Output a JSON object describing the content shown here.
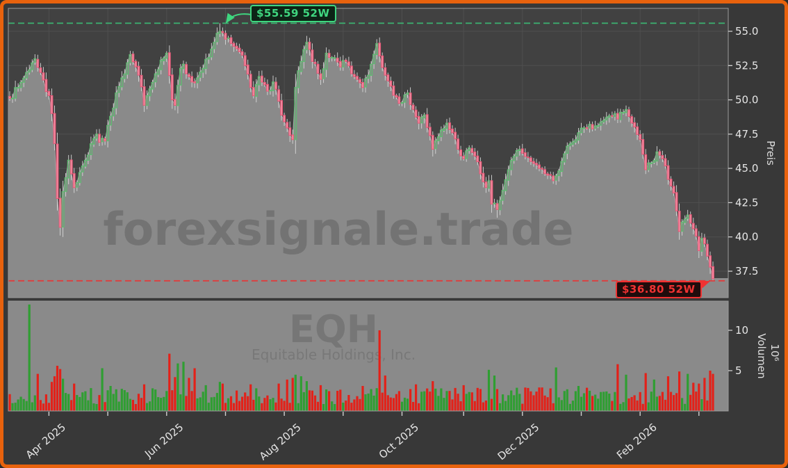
{
  "watermark": {
    "line1": "forexsignale.trade",
    "symbol": "EQH",
    "company": "Equitable Holdings, Inc."
  },
  "annotations": {
    "high": {
      "label": "$55.59 52W",
      "value": 55.59,
      "color": "#3fd67f",
      "bg": "#0d2416"
    },
    "low": {
      "label": "$36.80 52W",
      "value": 36.8,
      "color": "#f03232",
      "bg": "#200c0c"
    }
  },
  "axes": {
    "price": {
      "title": "Preis",
      "range": [
        35.6,
        56.7
      ],
      "ticks": [
        {
          "v": 55.0,
          "label": "55.0"
        },
        {
          "v": 52.5,
          "label": "52.5"
        },
        {
          "v": 50.0,
          "label": "50.0"
        },
        {
          "v": 47.5,
          "label": "47.5"
        },
        {
          "v": 45.0,
          "label": "45.0"
        },
        {
          "v": 42.5,
          "label": "42.5"
        },
        {
          "v": 40.0,
          "label": "40.0"
        },
        {
          "v": 37.5,
          "label": "37.5"
        }
      ]
    },
    "volume": {
      "title": "Volumen",
      "unit": "10⁶",
      "range": [
        0,
        13.7
      ],
      "ticks": [
        {
          "v": 10,
          "label": "10"
        },
        {
          "v": 5,
          "label": "5"
        }
      ]
    },
    "x": {
      "ticks": [
        {
          "i": 14,
          "label": "Apr 2025"
        },
        {
          "i": 35,
          "label": ""
        },
        {
          "i": 56,
          "label": "Jun 2025"
        },
        {
          "i": 77,
          "label": ""
        },
        {
          "i": 98,
          "label": "Aug 2025"
        },
        {
          "i": 119,
          "label": ""
        },
        {
          "i": 140,
          "label": "Oct 2025"
        },
        {
          "i": 162,
          "label": ""
        },
        {
          "i": 183,
          "label": "Dec 2025"
        },
        {
          "i": 204,
          "label": ""
        },
        {
          "i": 225,
          "label": "Feb 2026"
        },
        {
          "i": 246,
          "label": ""
        }
      ]
    }
  },
  "chart_data": {
    "type": "candlestick",
    "symbol": "EQH",
    "n": 252,
    "seed": 7,
    "high_52w": 55.59,
    "low_52w": 36.8,
    "close_anchors": [
      [
        0,
        50.1
      ],
      [
        3,
        50.9
      ],
      [
        6,
        52.0
      ],
      [
        9,
        53.0
      ],
      [
        11,
        52.0
      ],
      [
        13,
        50.6
      ],
      [
        14,
        50.3
      ],
      [
        15,
        49.0
      ],
      [
        16,
        46.8
      ],
      [
        17,
        42.8
      ],
      [
        18,
        40.7
      ],
      [
        19,
        43.3
      ],
      [
        21,
        45.6
      ],
      [
        22,
        44.6
      ],
      [
        23,
        43.6
      ],
      [
        25,
        44.7
      ],
      [
        27,
        45.6
      ],
      [
        29,
        46.8
      ],
      [
        31,
        47.5
      ],
      [
        32,
        46.9
      ],
      [
        33,
        47.2
      ],
      [
        34,
        47.0
      ],
      [
        36,
        48.8
      ],
      [
        38,
        50.5
      ],
      [
        40,
        51.6
      ],
      [
        42,
        52.7
      ],
      [
        43,
        53.3
      ],
      [
        45,
        52.4
      ],
      [
        46,
        51.8
      ],
      [
        48,
        49.6
      ],
      [
        50,
        50.8
      ],
      [
        52,
        51.9
      ],
      [
        54,
        52.9
      ],
      [
        56,
        53.4
      ],
      [
        58,
        50.0
      ],
      [
        59,
        49.6
      ],
      [
        61,
        52.3
      ],
      [
        62,
        52.6
      ],
      [
        63,
        51.9
      ],
      [
        65,
        51.3
      ],
      [
        67,
        51.6
      ],
      [
        69,
        52.3
      ],
      [
        71,
        53.1
      ],
      [
        73,
        54.2
      ],
      [
        75,
        55.0
      ],
      [
        76,
        54.9
      ],
      [
        78,
        54.5
      ],
      [
        80,
        53.9
      ],
      [
        82,
        53.5
      ],
      [
        84,
        52.5
      ],
      [
        86,
        50.9
      ],
      [
        87,
        50.3
      ],
      [
        89,
        51.7
      ],
      [
        91,
        51.1
      ],
      [
        93,
        50.7
      ],
      [
        94,
        51.3
      ],
      [
        96,
        49.9
      ],
      [
        98,
        48.4
      ],
      [
        100,
        47.4
      ],
      [
        101,
        47.1
      ],
      [
        102,
        50.9
      ],
      [
        104,
        52.8
      ],
      [
        106,
        54.2
      ],
      [
        108,
        52.8
      ],
      [
        111,
        51.5
      ],
      [
        113,
        53.4
      ],
      [
        115,
        53.1
      ],
      [
        118,
        52.4
      ],
      [
        120,
        52.8
      ],
      [
        122,
        51.9
      ],
      [
        124,
        51.5
      ],
      [
        126,
        50.9
      ],
      [
        128,
        51.8
      ],
      [
        131,
        54.1
      ],
      [
        132,
        53.2
      ],
      [
        134,
        51.8
      ],
      [
        136,
        51.0
      ],
      [
        138,
        50.2
      ],
      [
        140,
        49.8
      ],
      [
        142,
        50.5
      ],
      [
        144,
        49.3
      ],
      [
        146,
        48.3
      ],
      [
        148,
        48.9
      ],
      [
        151,
        46.4
      ],
      [
        153,
        47.3
      ],
      [
        156,
        48.3
      ],
      [
        158,
        47.6
      ],
      [
        160,
        46.4
      ],
      [
        162,
        45.7
      ],
      [
        164,
        46.5
      ],
      [
        166,
        45.9
      ],
      [
        168,
        44.6
      ],
      [
        170,
        43.6
      ],
      [
        171,
        44.1
      ],
      [
        172,
        42.4
      ],
      [
        174,
        42.0
      ],
      [
        176,
        43.4
      ],
      [
        178,
        44.9
      ],
      [
        181,
        46.3
      ],
      [
        183,
        46.1
      ],
      [
        186,
        45.5
      ],
      [
        189,
        45.0
      ],
      [
        192,
        44.5
      ],
      [
        194,
        44.1
      ],
      [
        197,
        45.5
      ],
      [
        200,
        46.8
      ],
      [
        203,
        47.6
      ],
      [
        206,
        47.9
      ],
      [
        209,
        48.1
      ],
      [
        212,
        48.5
      ],
      [
        215,
        48.8
      ],
      [
        216,
        49.0
      ],
      [
        217,
        48.6
      ],
      [
        218,
        49.1
      ],
      [
        220,
        49.3
      ],
      [
        222,
        48.3
      ],
      [
        225,
        47.1
      ],
      [
        227,
        44.9
      ],
      [
        229,
        45.4
      ],
      [
        231,
        46.2
      ],
      [
        233,
        45.7
      ],
      [
        235,
        44.2
      ],
      [
        237,
        43.2
      ],
      [
        238,
        41.9
      ],
      [
        239,
        40.4
      ],
      [
        241,
        41.3
      ],
      [
        242,
        41.6
      ],
      [
        244,
        40.6
      ],
      [
        246,
        39.0
      ],
      [
        247,
        39.9
      ],
      [
        248,
        39.5
      ],
      [
        249,
        38.6
      ],
      [
        250,
        37.8
      ],
      [
        251,
        36.95
      ]
    ],
    "volume_spikes": [
      [
        7,
        13.2
      ],
      [
        10,
        4.6
      ],
      [
        15,
        3.6
      ],
      [
        16,
        4.3
      ],
      [
        17,
        5.6
      ],
      [
        18,
        5.2
      ],
      [
        19,
        4.0
      ],
      [
        23,
        3.4
      ],
      [
        33,
        5.3
      ],
      [
        36,
        3.1
      ],
      [
        48,
        3.3
      ],
      [
        57,
        7.1
      ],
      [
        59,
        4.2
      ],
      [
        60,
        5.9
      ],
      [
        62,
        6.1
      ],
      [
        64,
        4.1
      ],
      [
        66,
        5.3
      ],
      [
        70,
        3.2
      ],
      [
        75,
        3.6
      ],
      [
        76,
        3.4
      ],
      [
        86,
        3.3
      ],
      [
        96,
        3.4
      ],
      [
        99,
        3.9
      ],
      [
        101,
        4.1
      ],
      [
        102,
        4.5
      ],
      [
        104,
        4.3
      ],
      [
        106,
        3.7
      ],
      [
        111,
        3.2
      ],
      [
        126,
        3.1
      ],
      [
        132,
        10.0
      ],
      [
        134,
        4.4
      ],
      [
        145,
        3.3
      ],
      [
        151,
        3.7
      ],
      [
        162,
        3.2
      ],
      [
        171,
        5.1
      ],
      [
        173,
        4.4
      ],
      [
        195,
        5.4
      ],
      [
        203,
        3.1
      ],
      [
        217,
        5.8
      ],
      [
        220,
        4.5
      ],
      [
        227,
        4.7
      ],
      [
        230,
        3.9
      ],
      [
        235,
        4.3
      ],
      [
        239,
        4.9
      ],
      [
        242,
        4.6
      ],
      [
        244,
        3.5
      ],
      [
        246,
        3.4
      ],
      [
        248,
        4.1
      ],
      [
        250,
        5.0
      ],
      [
        251,
        4.6
      ]
    ],
    "wick_overrides": {
      "18": {
        "low": 40.1
      },
      "75": {
        "high": 55.59
      },
      "101": {
        "low": 46.8
      },
      "174": {
        "low": 41.4
      },
      "239": {
        "low": 39.8
      },
      "251": {
        "low": 36.8
      }
    }
  },
  "colors": {
    "frame": "#e8620d",
    "bg_outer": "#383838",
    "bg_plot": "#414141",
    "grid": "#4f4f4f",
    "spine": "#9b9b9b",
    "area": "#8a8a8a",
    "area_edge": "#a8a8a8",
    "watermark": "#5e5e5e",
    "wick": "#d8d8d8",
    "up_stroke": "#5abf6e",
    "down_fill": "#f18ba0",
    "down_stroke": "#e65575",
    "vol_up": "#2f9e32",
    "vol_down": "#e32119",
    "dash_high": "#3cb371",
    "dash_low": "#e03c3c",
    "tick_mark": "#d0d0d0"
  }
}
